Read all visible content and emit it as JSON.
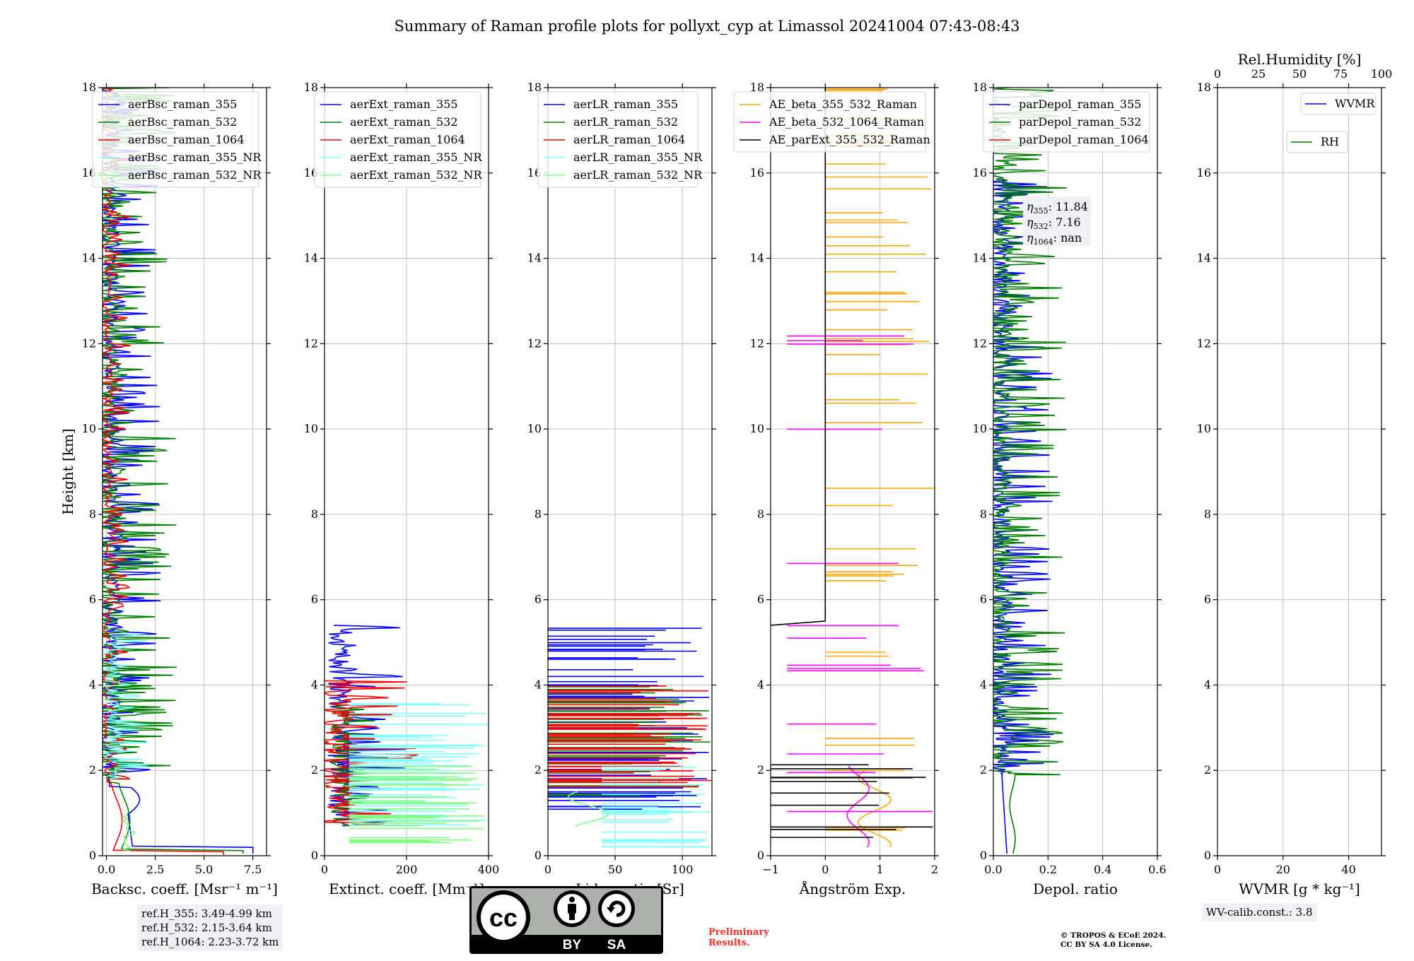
{
  "title": "Summary of Raman profile plots for pollyxt_cyp at Limassol 20241004 07:43-08:43",
  "colors": {
    "blue": "#0000ff",
    "green": "#008000",
    "red": "#ff0000",
    "cyan": "#80ffff",
    "lightgreen": "#80ff80",
    "orange": "#ffa500",
    "magenta": "#ff00ff",
    "black": "#000000",
    "grid": "#b0b0b0"
  },
  "chart_data": [
    {
      "id": "bsc",
      "type": "line",
      "xlabel": "Backsc. coeff. [Msr⁻¹ m⁻¹]",
      "ylabel": "Height [km]",
      "xlim": [
        -0.2,
        8.2
      ],
      "ylim": [
        0,
        18
      ],
      "xticks": [
        0,
        2.5,
        5,
        7.5
      ],
      "xtick_labels": [
        "0.0",
        "2.5",
        "5.0",
        "7.5"
      ],
      "yticks": [
        0,
        2,
        4,
        6,
        8,
        10,
        12,
        14,
        16,
        18
      ],
      "legend": "top-left",
      "series": [
        {
          "name": "aerBsc_raman_355",
          "color": "#0000ff",
          "profile": "bsc355"
        },
        {
          "name": "aerBsc_raman_532",
          "color": "#008000",
          "profile": "bsc532"
        },
        {
          "name": "aerBsc_raman_1064",
          "color": "#ff0000",
          "profile": "bsc1064"
        },
        {
          "name": "aerBsc_raman_355_NR",
          "color": "#80ffff",
          "profile": "bsc355nr"
        },
        {
          "name": "aerBsc_raman_532_NR",
          "color": "#80ff80",
          "profile": "bsc532nr"
        }
      ]
    },
    {
      "id": "ext",
      "type": "line",
      "xlabel": "Extinct. coeff. [Mm⁻¹]",
      "xlim": [
        0,
        400
      ],
      "ylim": [
        0,
        18
      ],
      "xticks": [
        0,
        200,
        400
      ],
      "xtick_labels": [
        "0",
        "200",
        "400"
      ],
      "yticks": [
        0,
        2,
        4,
        6,
        8,
        10,
        12,
        14,
        16,
        18
      ],
      "legend": "top-left",
      "series": [
        {
          "name": "aerExt_raman_355",
          "color": "#0000ff",
          "profile": "ext355"
        },
        {
          "name": "aerExt_raman_532",
          "color": "#008000",
          "profile": "ext532"
        },
        {
          "name": "aerExt_raman_1064",
          "color": "#ff0000",
          "profile": "ext1064"
        },
        {
          "name": "aerExt_raman_355_NR",
          "color": "#80ffff",
          "profile": "ext355nr"
        },
        {
          "name": "aerExt_raman_532_NR",
          "color": "#80ff80",
          "profile": "ext532nr"
        }
      ]
    },
    {
      "id": "lr",
      "type": "line",
      "xlabel": "Lidar ratio [Sr]",
      "xlim": [
        0,
        122
      ],
      "ylim": [
        0,
        18
      ],
      "xticks": [
        0,
        50,
        100
      ],
      "xtick_labels": [
        "0",
        "50",
        "100"
      ],
      "yticks": [
        0,
        2,
        4,
        6,
        8,
        10,
        12,
        14,
        16,
        18
      ],
      "legend": "top-left",
      "series": [
        {
          "name": "aerLR_raman_355",
          "color": "#0000ff",
          "profile": "lr355"
        },
        {
          "name": "aerLR_raman_532",
          "color": "#008000",
          "profile": "lr532"
        },
        {
          "name": "aerLR_raman_1064",
          "color": "#ff0000",
          "profile": "lr1064"
        },
        {
          "name": "aerLR_raman_355_NR",
          "color": "#80ffff",
          "profile": "lr355nr"
        },
        {
          "name": "aerLR_raman_532_NR",
          "color": "#80ff80",
          "profile": "lr532nr"
        }
      ]
    },
    {
      "id": "ae",
      "type": "line",
      "xlabel": "Ångström Exp.",
      "xlim": [
        -1,
        2
      ],
      "ylim": [
        0,
        18
      ],
      "xticks": [
        -1,
        0,
        1,
        2
      ],
      "xtick_labels": [
        "−1",
        "0",
        "1",
        "2"
      ],
      "yticks": [
        0,
        2,
        4,
        6,
        8,
        10,
        12,
        14,
        16,
        18
      ],
      "legend": "top-left",
      "series": [
        {
          "name": "AE_beta_355_532_Raman",
          "color": "#ffa500",
          "profile": "ae1"
        },
        {
          "name": "AE_beta_532_1064_Raman",
          "color": "#ff00ff",
          "profile": "ae2"
        },
        {
          "name": "AE_parExt_355_532_Raman",
          "color": "#000000",
          "profile": "ae3"
        }
      ]
    },
    {
      "id": "depol",
      "type": "line",
      "xlabel": "Depol. ratio",
      "xlim": [
        0,
        0.6
      ],
      "ylim": [
        0,
        18
      ],
      "xticks": [
        0,
        0.2,
        0.4,
        0.6
      ],
      "xtick_labels": [
        "0.0",
        "0.2",
        "0.4",
        "0.6"
      ],
      "yticks": [
        0,
        2,
        4,
        6,
        8,
        10,
        12,
        14,
        16,
        18
      ],
      "legend": "top-left",
      "series": [
        {
          "name": "parDepol_raman_355",
          "color": "#0000ff",
          "profile": "dep355"
        },
        {
          "name": "parDepol_raman_532",
          "color": "#008000",
          "profile": "dep532"
        },
        {
          "name": "parDepol_raman_1064",
          "color": "#ff0000",
          "profile": "none"
        }
      ],
      "annotation": [
        {
          "sym": "η",
          "sub": "355",
          "value": ": 11.84"
        },
        {
          "sym": "η",
          "sub": "532",
          "value": ": 7.16"
        },
        {
          "sym": "η",
          "sub": "1064",
          "value": ": nan"
        }
      ]
    },
    {
      "id": "wv",
      "type": "line",
      "xlabel": "WVMR [g * kg⁻¹]",
      "x2label": "Rel.Humidity [%]",
      "xlim": [
        0,
        50
      ],
      "x2lim": [
        0,
        100
      ],
      "ylim": [
        0,
        18
      ],
      "xticks": [
        0,
        20,
        40
      ],
      "xtick_labels": [
        "0",
        "20",
        "40"
      ],
      "x2ticks": [
        0,
        25,
        50,
        75,
        100
      ],
      "x2tick_labels": [
        "0",
        "25",
        "50",
        "75",
        "100"
      ],
      "yticks": [
        0,
        2,
        4,
        6,
        8,
        10,
        12,
        14,
        16,
        18
      ],
      "legend": "top-right",
      "series": [
        {
          "name": "WVMR",
          "color": "#0000ff"
        },
        {
          "name": "RH",
          "color": "#008000"
        }
      ]
    }
  ],
  "info": {
    "refH": [
      "ref.H_355: 3.49-4.99 km",
      "ref.H_532: 2.15-3.64 km",
      "ref.H_1064: 2.23-3.72 km"
    ],
    "wv_calib": "WV-calib.const.: 3.8",
    "preliminary": [
      "Preliminary",
      "Results."
    ],
    "copyright": [
      "© TROPOS & ECoE 2024.",
      "CC BY SA 4.0 License."
    ],
    "cc_badge": {
      "cc": "cc",
      "by": "BY",
      "sa": "SA"
    }
  }
}
